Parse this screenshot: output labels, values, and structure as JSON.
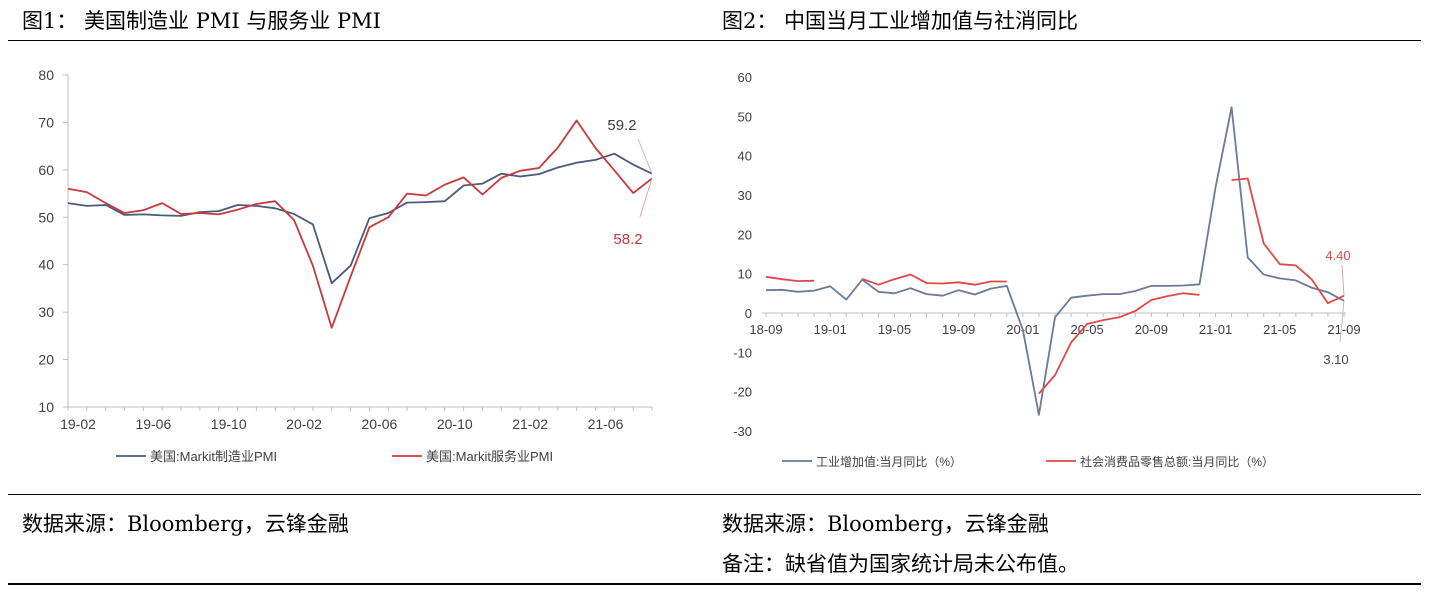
{
  "figures": [
    {
      "title": "图1：  美国制造业 PMI 与服务业 PMI",
      "source": "数据来源：Bloomberg，云锋金融"
    },
    {
      "title": "图2：  中国当月工业增加值与社消同比",
      "source": "数据来源：Bloomberg，云锋金融",
      "note": "备注：缺省值为国家统计局未公布值。"
    }
  ],
  "chart_data": [
    {
      "type": "line",
      "ylim": [
        10,
        80
      ],
      "yticks": [
        10,
        20,
        30,
        40,
        50,
        60,
        70,
        80
      ],
      "x": [
        "19-02",
        "19-03",
        "19-04",
        "19-05",
        "19-06",
        "19-07",
        "19-08",
        "19-09",
        "19-10",
        "19-11",
        "19-12",
        "20-01",
        "20-02",
        "20-03",
        "20-04",
        "20-05",
        "20-06",
        "20-07",
        "20-08",
        "20-09",
        "20-10",
        "20-11",
        "20-12",
        "21-01",
        "21-02",
        "21-03",
        "21-04",
        "21-05",
        "21-06",
        "21-07",
        "21-08",
        "21-09"
      ],
      "xticks": [
        "19-02",
        "19-06",
        "19-10",
        "20-02",
        "20-06",
        "20-10",
        "21-02",
        "21-06"
      ],
      "series": [
        {
          "name": "美国:Markit制造业PMI",
          "color": "#4a5a7a",
          "values": [
            53.0,
            52.4,
            52.6,
            50.5,
            50.6,
            50.4,
            50.3,
            51.1,
            51.3,
            52.6,
            52.4,
            51.9,
            50.7,
            48.5,
            36.1,
            39.8,
            49.8,
            50.9,
            53.1,
            53.2,
            53.4,
            56.7,
            57.1,
            59.2,
            58.6,
            59.1,
            60.5,
            61.5,
            62.1,
            63.4,
            61.1,
            59.2
          ]
        },
        {
          "name": "美国:Markit服务业PMI",
          "color": "#c8383c",
          "values": [
            56.0,
            55.3,
            53.0,
            50.9,
            51.5,
            53.0,
            50.7,
            50.9,
            50.6,
            51.6,
            52.8,
            53.4,
            49.4,
            39.8,
            26.7,
            37.5,
            47.9,
            50.0,
            55.0,
            54.6,
            56.9,
            58.4,
            54.8,
            58.3,
            59.8,
            60.4,
            64.7,
            70.4,
            64.6,
            59.9,
            55.1,
            58.2
          ]
        }
      ],
      "annotations": [
        {
          "text": "59.2",
          "color": "#404040"
        },
        {
          "text": "58.2",
          "color": "#c8383c"
        }
      ]
    },
    {
      "type": "line",
      "ylim": [
        -30,
        60
      ],
      "yticks": [
        -30,
        -20,
        -10,
        0,
        10,
        20,
        30,
        40,
        50,
        60
      ],
      "x": [
        "18-09",
        "18-10",
        "18-11",
        "18-12",
        "19-01",
        "19-02",
        "19-03",
        "19-04",
        "19-05",
        "19-06",
        "19-07",
        "19-08",
        "19-09",
        "19-10",
        "19-11",
        "19-12",
        "20-01",
        "20-02",
        "20-03",
        "20-04",
        "20-05",
        "20-06",
        "20-07",
        "20-08",
        "20-09",
        "20-10",
        "20-11",
        "20-12",
        "21-01",
        "21-02",
        "21-03",
        "21-04",
        "21-05",
        "21-06",
        "21-07",
        "21-08",
        "21-09"
      ],
      "xticks": [
        "18-09",
        "19-01",
        "19-05",
        "19-09",
        "20-01",
        "20-05",
        "20-09",
        "21-01",
        "21-05",
        "21-09"
      ],
      "series": [
        {
          "name": "工业增加值:当月同比（%）",
          "color": "#6a7a98",
          "values": [
            5.8,
            5.9,
            5.4,
            5.7,
            6.8,
            3.4,
            8.5,
            5.4,
            5.0,
            6.3,
            4.8,
            4.4,
            5.8,
            4.7,
            6.2,
            6.9,
            -4.3,
            -25.9,
            -1.1,
            3.9,
            4.4,
            4.8,
            4.8,
            5.6,
            6.9,
            6.9,
            7.0,
            7.3,
            32.0,
            52.3,
            14.1,
            9.8,
            8.8,
            8.3,
            6.4,
            5.3,
            3.1
          ]
        },
        {
          "name": "社会消费品零售总额:当月同比（%）",
          "color": "#e04848",
          "values": [
            9.2,
            8.6,
            8.1,
            8.2,
            null,
            null,
            8.7,
            7.2,
            8.6,
            9.8,
            7.6,
            7.5,
            7.8,
            7.2,
            8.0,
            8.0,
            null,
            -20.5,
            -15.8,
            -7.5,
            -2.8,
            -1.8,
            -1.1,
            0.5,
            3.3,
            4.3,
            5.0,
            4.6,
            null,
            33.8,
            34.2,
            17.7,
            12.4,
            12.1,
            8.5,
            2.5,
            4.4
          ]
        }
      ],
      "annotations": [
        {
          "text": "4.40",
          "color": "#e04848"
        },
        {
          "text": "3.10",
          "color": "#404040"
        }
      ]
    }
  ]
}
